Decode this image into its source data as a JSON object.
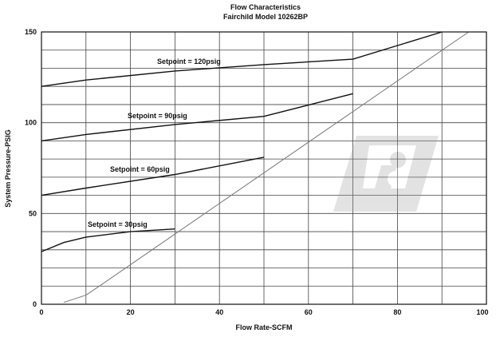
{
  "chart_data": {
    "type": "line",
    "title": "Flow Characteristics",
    "subtitle": "Fairchild Model 10262BP",
    "xlabel": "Flow Rate-SCFM",
    "ylabel": "System Pressure-PSIG",
    "xlim": [
      0,
      100
    ],
    "ylim": [
      0,
      150
    ],
    "x_ticks": [
      "0",
      "20",
      "40",
      "60",
      "80",
      "100"
    ],
    "y_ticks": [
      "0",
      "50",
      "100",
      "150"
    ],
    "grid": true,
    "series": [
      {
        "name": "Setpoint = 120psig",
        "points": [
          [
            0,
            120
          ],
          [
            10,
            123.5
          ],
          [
            30,
            128.5
          ],
          [
            50,
            132
          ],
          [
            70,
            135
          ],
          [
            90,
            151
          ]
        ]
      },
      {
        "name": "Setpoint = 90psig",
        "points": [
          [
            0,
            90
          ],
          [
            10,
            93.5
          ],
          [
            30,
            99
          ],
          [
            50,
            103.5
          ],
          [
            70,
            116
          ]
        ]
      },
      {
        "name": "Setpoint = 60psig",
        "points": [
          [
            0,
            60
          ],
          [
            10,
            64
          ],
          [
            30,
            71.5
          ],
          [
            50,
            81
          ]
        ]
      },
      {
        "name": "Setpoint = 30psig",
        "points": [
          [
            0,
            29
          ],
          [
            5,
            34
          ],
          [
            10,
            37
          ],
          [
            20,
            40
          ],
          [
            30,
            41.5
          ]
        ]
      }
    ],
    "reference_line": {
      "points": [
        [
          5,
          1
        ],
        [
          10,
          5
        ],
        [
          13,
          10
        ],
        [
          96,
          151
        ]
      ],
      "color": "#777777"
    }
  }
}
